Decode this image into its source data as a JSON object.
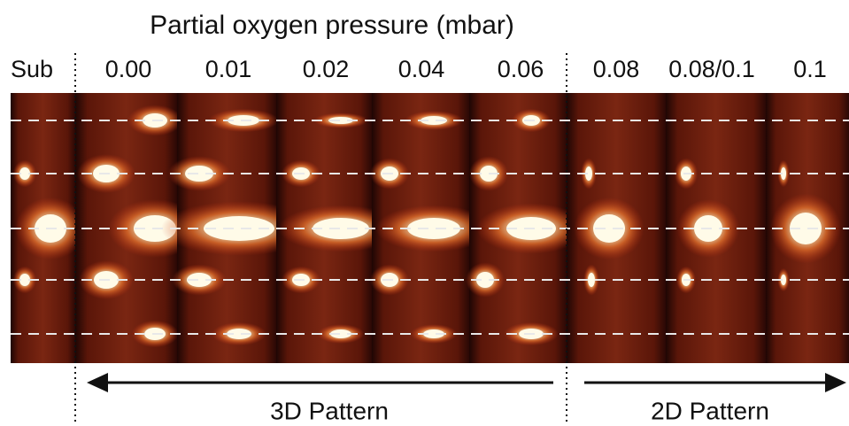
{
  "header": {
    "title": "Partial oxygen pressure (mbar)"
  },
  "columns": [
    {
      "label": "Sub"
    },
    {
      "label": "0.00"
    },
    {
      "label": "0.01"
    },
    {
      "label": "0.02"
    },
    {
      "label": "0.04"
    },
    {
      "label": "0.06"
    },
    {
      "label": "0.08"
    },
    {
      "label": "0.08/0.1"
    },
    {
      "label": "0.1"
    }
  ],
  "patterns": [
    {
      "label": "3D Pattern"
    },
    {
      "label": "2D Pattern"
    }
  ]
}
